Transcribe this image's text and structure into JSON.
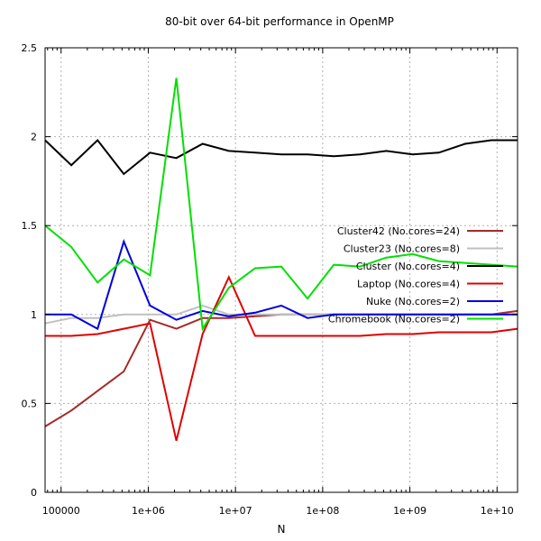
{
  "chart_data": {
    "type": "line",
    "title": "80-bit over 64-bit performance in OpenMP",
    "xlabel": "N",
    "ylabel": "",
    "xscale": "log",
    "xlim": [
      65536,
      17179869184
    ],
    "ylim": [
      0,
      2.5
    ],
    "grid": true,
    "legend_position": "right",
    "yticks": [
      {
        "value": 0,
        "label": "0"
      },
      {
        "value": 0.5,
        "label": "0.5"
      },
      {
        "value": 1,
        "label": "1"
      },
      {
        "value": 1.5,
        "label": "1.5"
      },
      {
        "value": 2,
        "label": "2"
      },
      {
        "value": 2.5,
        "label": "2.5"
      }
    ],
    "xticks": [
      {
        "value": 100000,
        "label": "100000"
      },
      {
        "value": 1000000,
        "label": "1e+06"
      },
      {
        "value": 10000000,
        "label": "1e+07"
      },
      {
        "value": 100000000,
        "label": "1e+08"
      },
      {
        "value": 1000000000,
        "label": "1e+09"
      },
      {
        "value": 10000000000,
        "label": "1e+10"
      }
    ],
    "x": [
      65536,
      131072,
      262144,
      524288,
      1048576,
      2097152,
      4194304,
      8388608,
      16777216,
      33554432,
      67108864,
      134217728,
      268435456,
      536870912,
      1073741824,
      2147483648,
      4294967296,
      8589934592,
      17179869184
    ],
    "series": [
      {
        "name": "Cluster42 (No.cores=24)",
        "color": "#a52a2a",
        "values": [
          0.37,
          0.46,
          0.57,
          0.68,
          0.97,
          0.92,
          0.98,
          0.98,
          0.99,
          1.0,
          1.0,
          1.0,
          1.0,
          1.0,
          1.0,
          1.0,
          1.0,
          1.0,
          1.02
        ]
      },
      {
        "name": "Cluster23 (No.cores=8)",
        "color": "#c0c0c0",
        "values": [
          0.95,
          0.98,
          0.98,
          1.0,
          1.0,
          1.0,
          1.05,
          1.0,
          1.0,
          1.0,
          1.0,
          1.0,
          1.0,
          1.0,
          1.0,
          1.0,
          1.0,
          1.0,
          1.0
        ]
      },
      {
        "name": "Cluster (No.cores=4)",
        "color": "#000000",
        "values": [
          1.98,
          1.84,
          1.98,
          1.79,
          1.91,
          1.88,
          1.96,
          1.92,
          1.91,
          1.9,
          1.9,
          1.89,
          1.9,
          1.92,
          1.9,
          1.91,
          1.96,
          1.98,
          1.98
        ]
      },
      {
        "name": "Laptop (No.cores=4)",
        "color": "#e00000",
        "values": [
          0.88,
          0.88,
          0.89,
          0.92,
          0.95,
          0.29,
          0.89,
          1.21,
          0.88,
          0.88,
          0.88,
          0.88,
          0.88,
          0.89,
          0.89,
          0.9,
          0.9,
          0.9,
          0.92
        ]
      },
      {
        "name": "Nuke (No.cores=2)",
        "color": "#0000e0",
        "values": [
          1.0,
          1.0,
          0.92,
          1.41,
          1.05,
          0.97,
          1.02,
          0.99,
          1.01,
          1.05,
          0.98,
          1.0,
          1.0,
          1.0,
          1.0,
          1.0,
          1.0,
          1.0,
          1.0
        ]
      },
      {
        "name": "Chromebook (No.cores=2)",
        "color": "#00e000",
        "values": [
          1.5,
          1.38,
          1.18,
          1.31,
          1.22,
          2.33,
          0.92,
          1.15,
          1.26,
          1.27,
          1.09,
          1.28,
          1.27,
          1.32,
          1.34,
          1.3,
          1.29,
          1.28,
          1.27
        ]
      }
    ]
  }
}
